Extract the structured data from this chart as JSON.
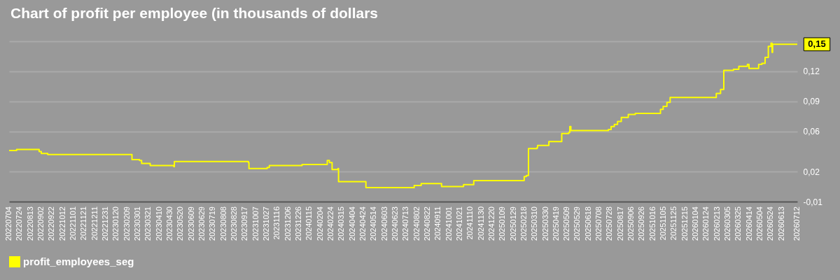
{
  "chart_data": {
    "type": "step",
    "title": "Chart of profit per employee (in thousands of dollars",
    "legend": "bottom",
    "grid": "y",
    "xlim": [
      "2022-07-04",
      "2026-07-12"
    ],
    "ylim": [
      -0.01,
      0.15
    ],
    "yticks": [
      {
        "value": -0.01,
        "label": "-0,01"
      },
      {
        "value": 0.02,
        "label": "0,02"
      },
      {
        "value": 0.06,
        "label": "0,06"
      },
      {
        "value": 0.09,
        "label": "0,09"
      },
      {
        "value": 0.12,
        "label": "0,12"
      },
      {
        "value": 0.15,
        "label": null
      }
    ],
    "xticks": [
      {
        "value": "2022-07-04",
        "label": "20220704"
      },
      {
        "value": "2022-07-24",
        "label": "20220724"
      },
      {
        "value": "2022-08-13",
        "label": "20220813"
      },
      {
        "value": "2022-09-02",
        "label": "20220902"
      },
      {
        "value": "2022-09-22",
        "label": "20220922"
      },
      {
        "value": "2022-10-12",
        "label": "20221012"
      },
      {
        "value": "2022-11-01",
        "label": "20221101"
      },
      {
        "value": "2022-11-21",
        "label": "20221121"
      },
      {
        "value": "2022-12-11",
        "label": "20221211"
      },
      {
        "value": "2022-12-31",
        "label": "20221231"
      },
      {
        "value": "2023-01-20",
        "label": "20230120"
      },
      {
        "value": "2023-02-09",
        "label": "20230209"
      },
      {
        "value": "2023-03-01",
        "label": "20230301"
      },
      {
        "value": "2023-03-21",
        "label": "20230321"
      },
      {
        "value": "2023-04-10",
        "label": "20230410"
      },
      {
        "value": "2023-04-30",
        "label": "20230430"
      },
      {
        "value": "2023-05-20",
        "label": "20230520"
      },
      {
        "value": "2023-06-09",
        "label": "20230609"
      },
      {
        "value": "2023-06-29",
        "label": "20230629"
      },
      {
        "value": "2023-07-19",
        "label": "20230719"
      },
      {
        "value": "2023-08-08",
        "label": "20230808"
      },
      {
        "value": "2023-08-28",
        "label": "20230828"
      },
      {
        "value": "2023-09-17",
        "label": "20230917"
      },
      {
        "value": "2023-10-07",
        "label": "20231007"
      },
      {
        "value": "2023-10-27",
        "label": "20231027"
      },
      {
        "value": "2023-11-16",
        "label": "20231116"
      },
      {
        "value": "2023-12-06",
        "label": "20231206"
      },
      {
        "value": "2023-12-26",
        "label": "20231226"
      },
      {
        "value": "2024-01-15",
        "label": "20240115"
      },
      {
        "value": "2024-02-04",
        "label": "20240204"
      },
      {
        "value": "2024-02-24",
        "label": "20240224"
      },
      {
        "value": "2024-03-15",
        "label": "20240315"
      },
      {
        "value": "2024-04-04",
        "label": "20240404"
      },
      {
        "value": "2024-04-24",
        "label": "20240424"
      },
      {
        "value": "2024-05-14",
        "label": "20240514"
      },
      {
        "value": "2024-06-03",
        "label": "20240603"
      },
      {
        "value": "2024-06-23",
        "label": "20240623"
      },
      {
        "value": "2024-07-13",
        "label": "20240713"
      },
      {
        "value": "2024-08-02",
        "label": "20240802"
      },
      {
        "value": "2024-08-22",
        "label": "20240822"
      },
      {
        "value": "2024-09-11",
        "label": "20240911"
      },
      {
        "value": "2024-10-01",
        "label": "20241001"
      },
      {
        "value": "2024-10-21",
        "label": "20241021"
      },
      {
        "value": "2024-11-10",
        "label": "20241110"
      },
      {
        "value": "2024-11-30",
        "label": "20241130"
      },
      {
        "value": "2024-12-20",
        "label": "20241220"
      },
      {
        "value": "2025-01-09",
        "label": "20250109"
      },
      {
        "value": "2025-01-29",
        "label": "20250129"
      },
      {
        "value": "2025-02-18",
        "label": "20250218"
      },
      {
        "value": "2025-03-10",
        "label": "20250310"
      },
      {
        "value": "2025-03-30",
        "label": "20250330"
      },
      {
        "value": "2025-04-19",
        "label": "20250419"
      },
      {
        "value": "2025-05-09",
        "label": "20250509"
      },
      {
        "value": "2025-05-29",
        "label": "20250529"
      },
      {
        "value": "2025-06-18",
        "label": "20250618"
      },
      {
        "value": "2025-07-08",
        "label": "20250708"
      },
      {
        "value": "2025-07-28",
        "label": "20250728"
      },
      {
        "value": "2025-08-17",
        "label": "20250817"
      },
      {
        "value": "2025-09-06",
        "label": "20250906"
      },
      {
        "value": "2025-09-26",
        "label": "20250926"
      },
      {
        "value": "2025-10-16",
        "label": "20251016"
      },
      {
        "value": "2025-11-05",
        "label": "20251105"
      },
      {
        "value": "2025-11-25",
        "label": "20251125"
      },
      {
        "value": "2025-12-15",
        "label": "20251215"
      },
      {
        "value": "2026-01-04",
        "label": "20260104"
      },
      {
        "value": "2026-01-24",
        "label": "20260124"
      },
      {
        "value": "2026-02-13",
        "label": "20260213"
      },
      {
        "value": "2026-03-05",
        "label": "20260305"
      },
      {
        "value": "2026-03-25",
        "label": "20260325"
      },
      {
        "value": "2026-04-14",
        "label": "20260414"
      },
      {
        "value": "2026-05-04",
        "label": "20260504"
      },
      {
        "value": "2026-05-24",
        "label": "20260524"
      },
      {
        "value": "2026-06-13",
        "label": "20260613"
      },
      {
        "value": "2026-07-12",
        "label": "20260712"
      }
    ],
    "annotations": [
      {
        "text": "0,15",
        "x": "2026-07-12",
        "y": 0.147
      }
    ],
    "x": [
      "2022-07-04",
      "2022-07-18",
      "2022-07-30",
      "2022-08-29",
      "2022-09-02",
      "2022-09-14",
      "2022-11-03",
      "2022-11-20",
      "2023-02-10",
      "2023-02-18",
      "2023-03-04",
      "2023-03-08",
      "2023-03-24",
      "2023-05-07",
      "2023-05-08",
      "2023-08-17",
      "2023-09-23",
      "2023-09-24",
      "2023-10-28",
      "2023-11-01",
      "2024-01-01",
      "2024-02-16",
      "2024-02-17",
      "2024-02-21",
      "2024-02-25",
      "2024-02-26",
      "2024-03-08",
      "2024-03-09",
      "2024-04-26",
      "2024-04-29",
      "2024-07-27",
      "2024-07-28",
      "2024-08-10",
      "2024-09-16",
      "2024-09-17",
      "2024-10-21",
      "2024-10-28",
      "2024-11-16",
      "2025-02-16",
      "2025-02-18",
      "2025-02-22",
      "2025-02-26",
      "2025-03-14",
      "2025-03-15",
      "2025-04-03",
      "2025-04-05",
      "2025-04-26",
      "2025-04-29",
      "2025-05-12",
      "2025-05-14",
      "2025-05-16",
      "2025-07-20",
      "2025-07-25",
      "2025-07-30",
      "2025-08-05",
      "2025-08-11",
      "2025-08-18",
      "2025-08-31",
      "2025-09-13",
      "2025-10-26",
      "2025-10-30",
      "2025-11-04",
      "2025-11-11",
      "2025-11-17",
      "2026-02-08",
      "2026-02-11",
      "2026-02-19",
      "2026-02-25",
      "2026-03-15",
      "2026-03-25",
      "2026-04-10",
      "2026-04-13",
      "2026-04-28",
      "2026-05-01",
      "2026-05-07",
      "2026-05-13",
      "2026-05-19",
      "2026-05-24",
      "2026-05-26",
      "2026-05-27",
      "2026-07-12"
    ],
    "series": [
      {
        "name": "profit_employees_seg",
        "color": "#ffff00",
        "values": [
          0.041,
          0.042,
          0.042,
          0.04,
          0.038,
          0.037,
          0.037,
          0.037,
          0.037,
          0.032,
          0.031,
          0.028,
          0.026,
          0.025,
          0.03,
          0.03,
          0.029,
          0.023,
          0.024,
          0.026,
          0.027,
          0.027,
          0.031,
          0.029,
          0.029,
          0.022,
          0.023,
          0.01,
          0.01,
          0.004,
          0.004,
          0.006,
          0.008,
          0.008,
          0.005,
          0.005,
          0.007,
          0.011,
          0.011,
          0.015,
          0.016,
          0.043,
          0.044,
          0.046,
          0.046,
          0.05,
          0.05,
          0.058,
          0.059,
          0.065,
          0.061,
          0.061,
          0.062,
          0.065,
          0.067,
          0.07,
          0.074,
          0.077,
          0.078,
          0.078,
          0.082,
          0.085,
          0.089,
          0.094,
          0.094,
          0.098,
          0.102,
          0.121,
          0.122,
          0.125,
          0.127,
          0.123,
          0.123,
          0.127,
          0.128,
          0.134,
          0.145,
          0.148,
          0.139,
          0.147,
          0.147
        ]
      }
    ]
  }
}
